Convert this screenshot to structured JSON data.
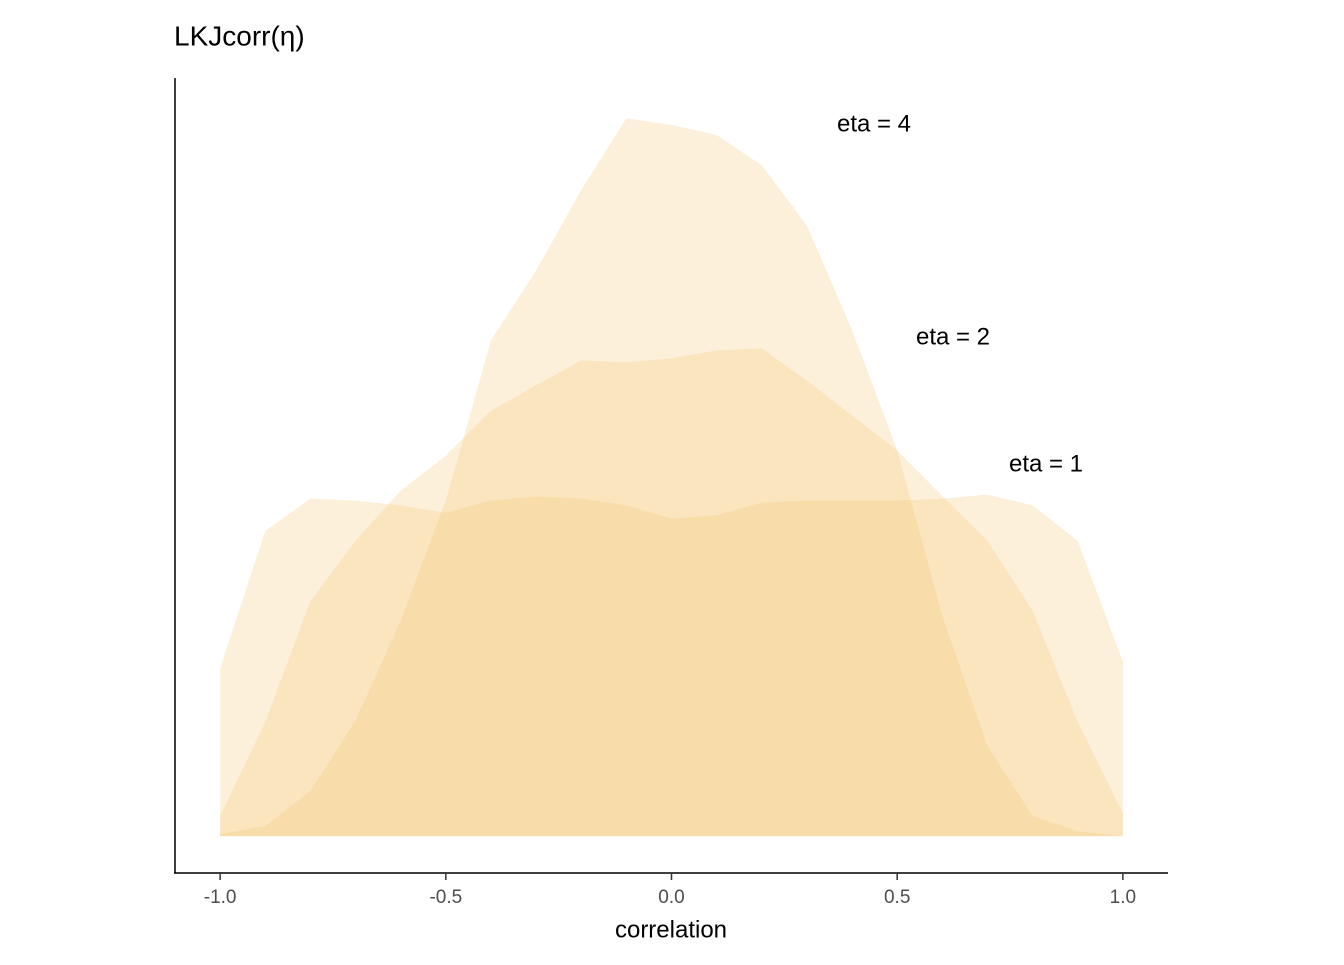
{
  "chart_data": {
    "type": "area",
    "title": "LKJcorr(η)",
    "x_label": "correlation",
    "x": [
      -1,
      -0.9,
      -0.8,
      -0.7,
      -0.6,
      -0.5,
      -0.4,
      -0.3,
      -0.2,
      -0.1,
      0,
      0.1,
      0.2,
      0.3,
      0.4,
      0.5,
      0.6,
      0.7,
      0.8,
      0.9,
      1
    ],
    "series": [
      {
        "name": "eta = 4",
        "color": "#f5c26b",
        "values": [
          0.003,
          0.015,
          0.067,
          0.172,
          0.321,
          0.5,
          0.739,
          0.843,
          0.963,
          1.07,
          1.06,
          1.045,
          1.0,
          0.91,
          0.754,
          0.575,
          0.328,
          0.134,
          0.03,
          0.007,
          0
        ]
      },
      {
        "name": "eta = 2",
        "color": "#f5c26b",
        "values": [
          0.03,
          0.17,
          0.35,
          0.44,
          0.515,
          0.567,
          0.634,
          0.672,
          0.709,
          0.706,
          0.712,
          0.724,
          0.727,
          0.679,
          0.627,
          0.575,
          0.507,
          0.44,
          0.336,
          0.17,
          0.034
        ]
      },
      {
        "name": "eta = 1",
        "color": "#f5c26b",
        "values": [
          0.25,
          0.455,
          0.503,
          0.5,
          0.493,
          0.482,
          0.5,
          0.506,
          0.503,
          0.493,
          0.473,
          0.478,
          0.497,
          0.5,
          0.5,
          0.5,
          0.503,
          0.509,
          0.493,
          0.44,
          0.26
        ]
      }
    ],
    "xlim": [
      -1.1,
      1.1
    ],
    "ylim": [
      -0.055,
      1.13
    ],
    "xticks": [
      {
        "value": -1,
        "label": "-1.0"
      },
      -0.5,
      {
        "value": 0,
        "label": "0.0"
      },
      0.5,
      {
        "value": 1,
        "label": "1.0"
      }
    ]
  }
}
